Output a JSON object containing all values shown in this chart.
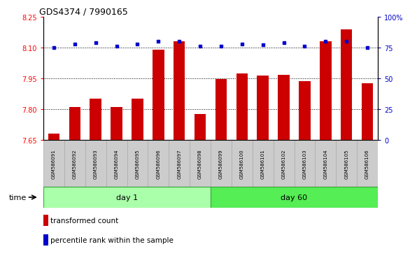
{
  "title": "GDS4374 / 7990165",
  "samples": [
    "GSM586091",
    "GSM586092",
    "GSM586093",
    "GSM586094",
    "GSM586095",
    "GSM586096",
    "GSM586097",
    "GSM586098",
    "GSM586099",
    "GSM586100",
    "GSM586101",
    "GSM586102",
    "GSM586103",
    "GSM586104",
    "GSM586105",
    "GSM586106"
  ],
  "bar_values": [
    7.68,
    7.81,
    7.85,
    7.81,
    7.85,
    8.09,
    8.13,
    7.775,
    7.945,
    7.975,
    7.962,
    7.968,
    7.935,
    8.13,
    8.19,
    7.925
  ],
  "percentile_values": [
    75,
    78,
    79,
    76,
    78,
    80,
    80,
    76,
    76,
    78,
    77,
    79,
    76,
    80,
    80,
    75
  ],
  "bar_color": "#cc0000",
  "percentile_color": "#0000cc",
  "day1_samples": 8,
  "day60_samples": 8,
  "ylim_left": [
    7.65,
    8.25
  ],
  "ylim_right": [
    0,
    100
  ],
  "yticks_left": [
    7.65,
    7.8,
    7.95,
    8.1,
    8.25
  ],
  "ytick_labels_left": [
    "7.65",
    "7.80",
    "7.95",
    "8.10",
    "8.25"
  ],
  "yticks_right": [
    0,
    25,
    50,
    75,
    100
  ],
  "ytick_labels_right": [
    "0",
    "25",
    "50",
    "75",
    "100%"
  ],
  "hlines": [
    7.8,
    7.95,
    8.1
  ],
  "day1_label": "day 1",
  "day60_label": "day 60",
  "time_label": "time",
  "legend_bar_label": "transformed count",
  "legend_pct_label": "percentile rank within the sample",
  "background_color": "#ffffff",
  "plot_bg_color": "#ffffff",
  "day1_color": "#aaffaa",
  "day60_color": "#55ee55",
  "bar_baseline": 7.65,
  "bar_width": 0.55,
  "label_box_color": "#cccccc",
  "label_box_edge": "#aaaaaa"
}
